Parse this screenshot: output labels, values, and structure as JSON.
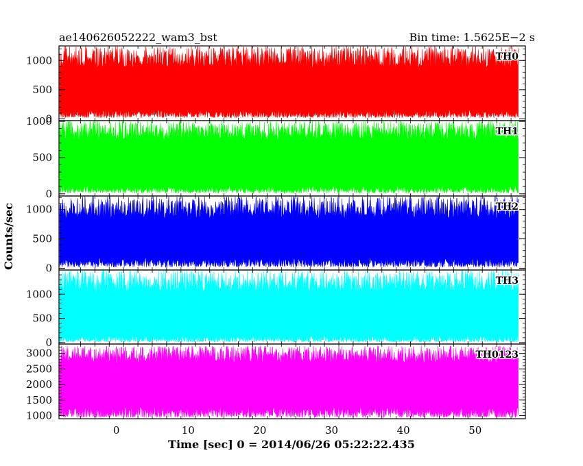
{
  "header": {
    "left_title": "ae140626052222_wam3_bst",
    "right_title": "Bin time: 1.5625E−2 s"
  },
  "chart_data": {
    "type": "line",
    "title": "ae140626052222_wam3_bst",
    "subtitle": "Bin time: 1.5625E−2 s",
    "xlabel": "Time [sec] 0 = 2014/06/26 05:22:22.435",
    "ylabel": "Counts/sec",
    "xlim": [
      -8.0,
      57.0
    ],
    "x_data_range": [
      -7.9,
      56.0
    ],
    "x_ticks": [
      0,
      10,
      20,
      30,
      40,
      50
    ],
    "x_tick_labels": [
      "0",
      "10",
      "20",
      "30",
      "40",
      "50"
    ],
    "bin_time_s": 0.015625,
    "grid": false,
    "legend": "none",
    "panels": [
      {
        "name": "TH0",
        "color": "#ff0000",
        "ylim": [
          -30,
          1250
        ],
        "y_ticks": [
          0,
          500,
          1000
        ],
        "y_tick_labels": [
          "0",
          "500",
          "1000"
        ],
        "baseline": 430,
        "low_range": [
          20,
          160
        ],
        "high_range": [
          880,
          1250
        ]
      },
      {
        "name": "TH1",
        "color": "#00ff00",
        "ylim": [
          -30,
          1010
        ],
        "y_ticks": [
          0,
          500,
          1000
        ],
        "y_tick_labels": [
          "0",
          "500",
          "1000"
        ],
        "baseline": 380,
        "low_range": [
          10,
          120
        ],
        "high_range": [
          750,
          1010
        ]
      },
      {
        "name": "TH2",
        "color": "#0000ff",
        "ylim": [
          -30,
          1230
        ],
        "y_ticks": [
          0,
          500,
          1000
        ],
        "y_tick_labels": [
          "0",
          "500",
          "1000"
        ],
        "baseline": 520,
        "low_range": [
          20,
          180
        ],
        "high_range": [
          850,
          1230
        ]
      },
      {
        "name": "TH3",
        "color": "#00ffff",
        "ylim": [
          -30,
          1500
        ],
        "y_ticks": [
          0,
          500,
          1000
        ],
        "y_tick_labels": [
          "0",
          "500",
          "1000"
        ],
        "baseline": 620,
        "low_range": [
          10,
          150
        ],
        "high_range": [
          1050,
          1500
        ]
      },
      {
        "name": "TH0123",
        "color": "#ff00ff",
        "ylim": [
          900,
          3300
        ],
        "y_ticks": [
          1000,
          1500,
          2000,
          2500,
          3000
        ],
        "y_tick_labels": [
          "1000",
          "1500",
          "2000",
          "2500",
          "3000"
        ],
        "baseline": 1950,
        "low_range": [
          940,
          1300
        ],
        "high_range": [
          2700,
          3250
        ]
      }
    ]
  }
}
